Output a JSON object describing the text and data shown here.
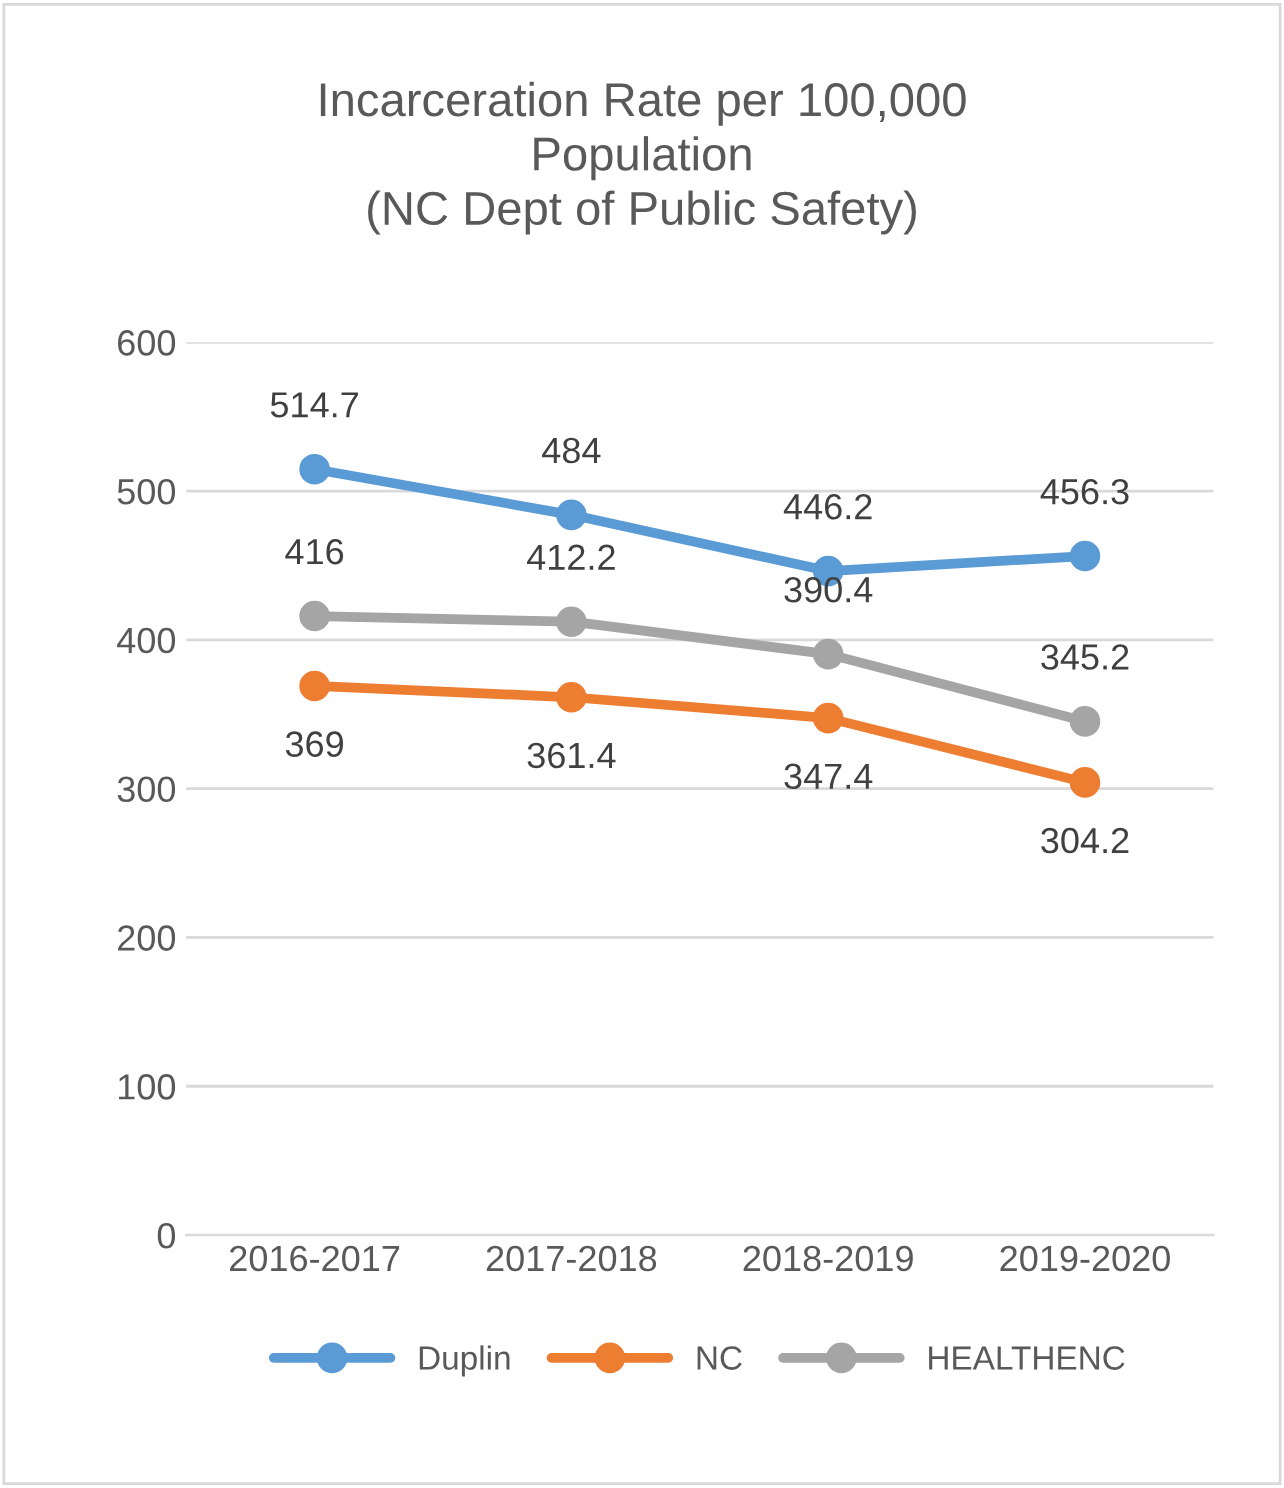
{
  "chart_data": {
    "type": "line",
    "title": "Incarceration Rate per 100,000\nPopulation\n(NC Dept of Public Safety)",
    "categories": [
      "2016-2017",
      "2017-2018",
      "2018-2019",
      "2019-2020"
    ],
    "series": [
      {
        "name": "Duplin",
        "color": "#5b9bd5",
        "values": [
          514.7,
          484,
          446.2,
          456.3
        ]
      },
      {
        "name": "NC",
        "color": "#ed7d31",
        "values": [
          369,
          361.4,
          347.4,
          304.2
        ]
      },
      {
        "name": "HEALTHENC",
        "color": "#a5a5a5",
        "values": [
          416,
          412.2,
          390.4,
          345.2
        ]
      }
    ],
    "ylim": [
      0,
      600
    ],
    "yticks": [
      0,
      100,
      200,
      300,
      400,
      500,
      600
    ],
    "grid": "y",
    "legend": "bottom",
    "marker": "circle",
    "line_style": "solid",
    "data_labels": true
  }
}
